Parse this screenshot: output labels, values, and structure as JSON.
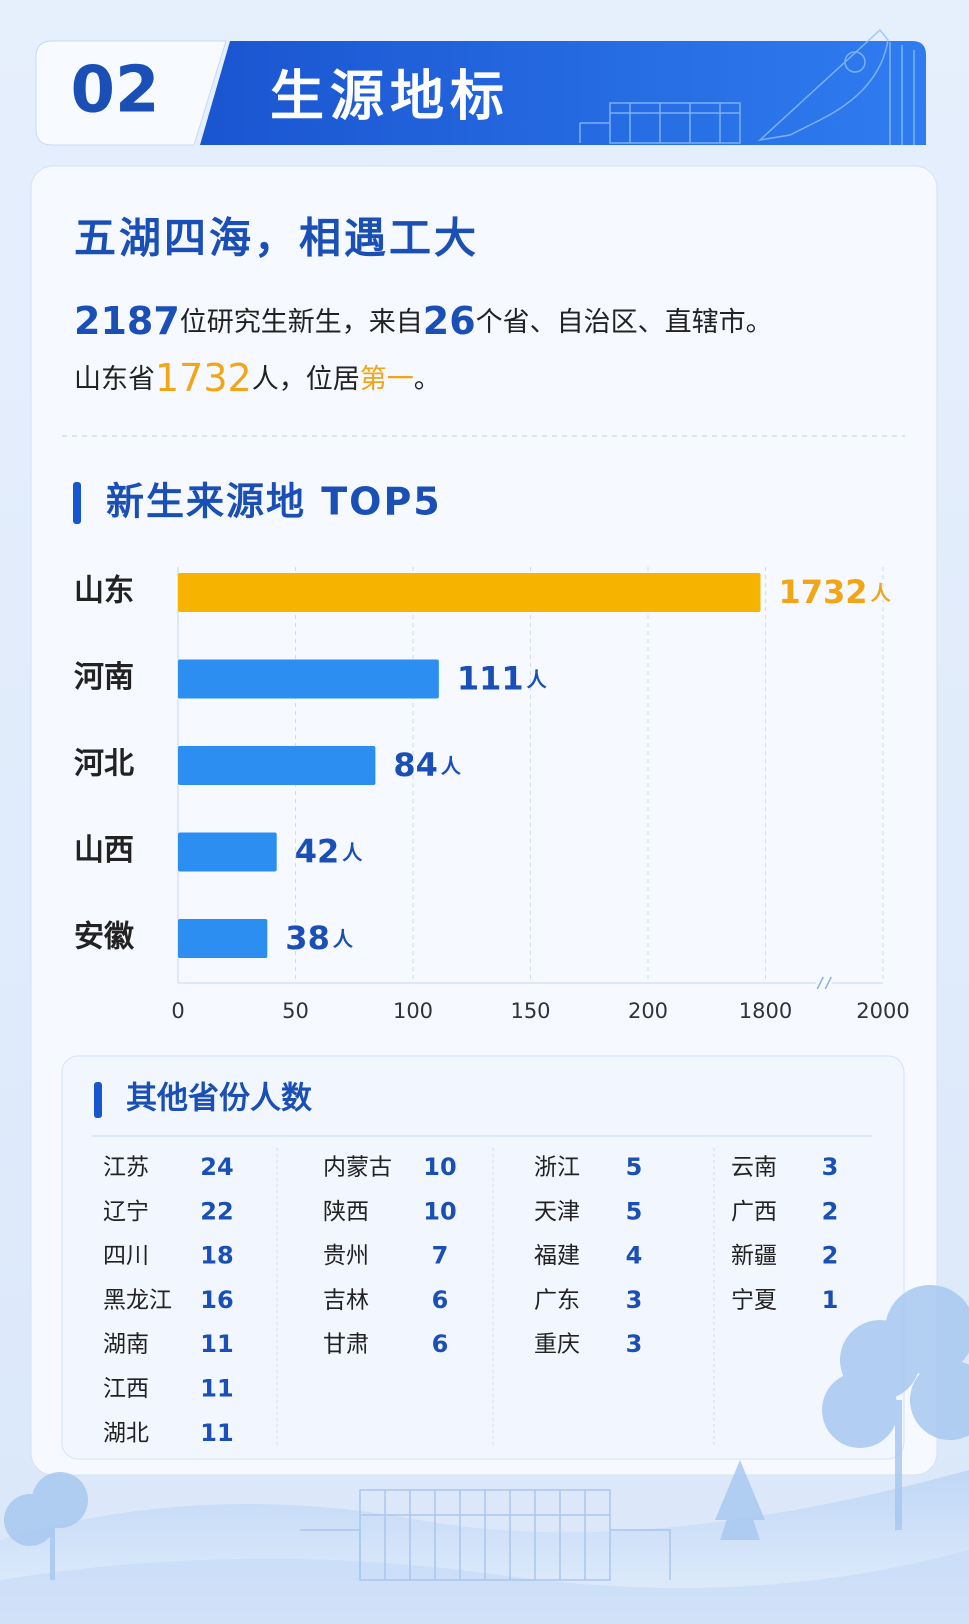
{
  "header": {
    "number": "02",
    "title": "生源地标"
  },
  "headline": "五湖四海，相遇工大",
  "summary": {
    "line1": [
      "2187",
      "位研究生新生，来自",
      "26",
      "个省、自治区、直辖市。"
    ],
    "line2": [
      "山东省",
      "1732",
      "人，位居",
      "第一",
      "。"
    ]
  },
  "chart_data": {
    "type": "bar",
    "orientation": "horizontal",
    "title": "新生来源地 TOP5",
    "categories": [
      "山东",
      "河南",
      "河北",
      "山西",
      "安徽"
    ],
    "values": [
      1732,
      111,
      84,
      42,
      38
    ],
    "unit": "人",
    "colors": [
      "#f6b400",
      "#2b8ef0",
      "#2b8ef0",
      "#2b8ef0",
      "#2b8ef0"
    ],
    "label_colors": [
      "#f2a516",
      "#1a4fb5",
      "#1a4fb5",
      "#1a4fb5",
      "#1a4fb5"
    ],
    "xlim": [
      0,
      2000
    ],
    "xticks": [
      0,
      50,
      100,
      150,
      200,
      1800,
      2000
    ],
    "grid": true
  },
  "other_provinces": {
    "title": "其他省份人数",
    "columns": [
      [
        [
          "江苏",
          24
        ],
        [
          "辽宁",
          22
        ],
        [
          "四川",
          18
        ],
        [
          "黑龙江",
          16
        ],
        [
          "湖南",
          11
        ],
        [
          "江西",
          11
        ],
        [
          "湖北",
          11
        ]
      ],
      [
        [
          "内蒙古",
          10
        ],
        [
          "陕西",
          10
        ],
        [
          "贵州",
          7
        ],
        [
          "吉林",
          6
        ],
        [
          "甘肃",
          6
        ]
      ],
      [
        [
          "浙江",
          5
        ],
        [
          "天津",
          5
        ],
        [
          "福建",
          4
        ],
        [
          "广东",
          3
        ],
        [
          "重庆",
          3
        ]
      ],
      [
        [
          "云南",
          3
        ],
        [
          "广西",
          2
        ],
        [
          "新疆",
          2
        ],
        [
          "宁夏",
          1
        ]
      ]
    ]
  }
}
